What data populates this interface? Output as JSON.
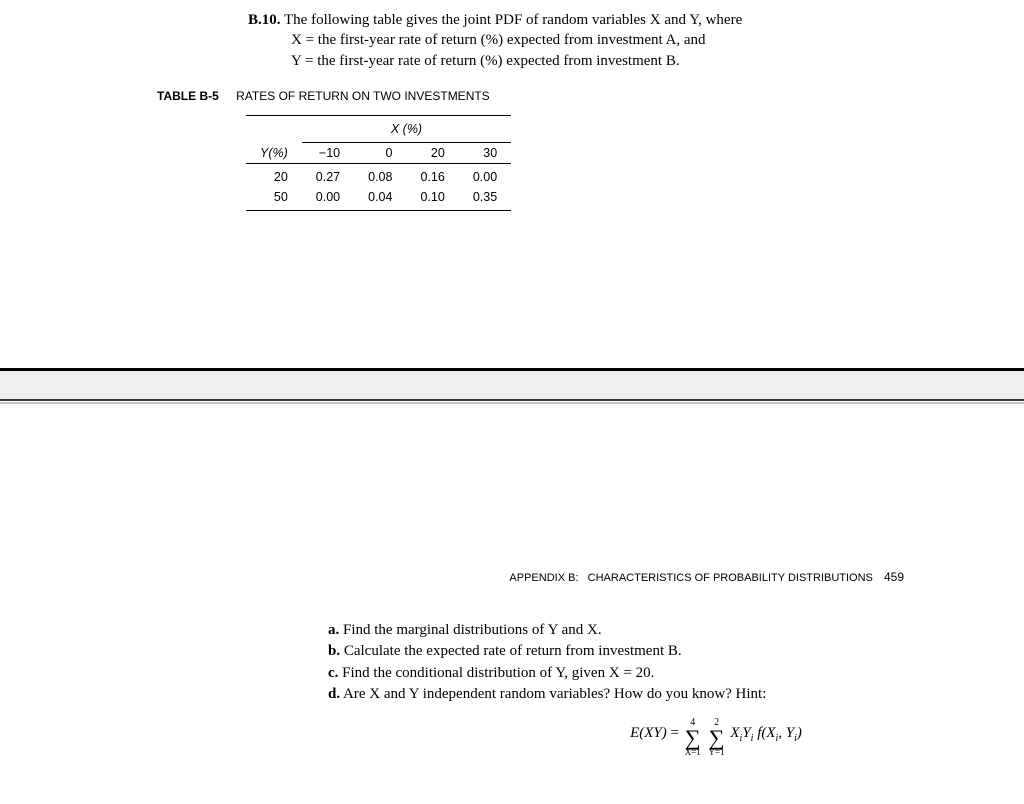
{
  "problem": {
    "number": "B.10.",
    "intro": "The following table gives the joint PDF of random variables X and Y, where",
    "def_x": "X = the first-year rate of return (%) expected from investment A, and",
    "def_y": "Y = the first-year rate of return (%) expected from investment B."
  },
  "table": {
    "label": "TABLE B-5",
    "title": "RATES OF RETURN ON TWO INVESTMENTS",
    "x_header": "X (%)",
    "y_header": "Y(%)",
    "x_values": [
      "−10",
      "0",
      "20",
      "30"
    ],
    "rows": [
      {
        "y": "20",
        "cells": [
          "0.27",
          "0.08",
          "0.16",
          "0.00"
        ]
      },
      {
        "y": "50",
        "cells": [
          "0.00",
          "0.04",
          "0.10",
          "0.35"
        ]
      }
    ]
  },
  "running_header": {
    "prefix": "APPENDIX B:",
    "title": "CHARACTERISTICS OF PROBABILITY DISTRIBUTIONS",
    "page": "459"
  },
  "questions": {
    "a": {
      "label": "a.",
      "text": "Find the marginal distributions of Y and X."
    },
    "b": {
      "label": "b.",
      "text": "Calculate the expected rate of return from investment B."
    },
    "c": {
      "label": "c.",
      "text": "Find the conditional distribution of Y, given X = 20."
    },
    "d": {
      "label": "d.",
      "text": "Are X and Y independent random variables? How do you know? Hint:"
    }
  },
  "formula": {
    "lhs": "E(XY)",
    "sum1_upper": "4",
    "sum1_lower": "X=1",
    "sum2_upper": "2",
    "sum2_lower": "Y=1"
  },
  "colors": {
    "text": "#000000",
    "background": "#ffffff",
    "divider_gap": "#efefef",
    "divider_dark": "#3a3a3a",
    "divider_light": "#c7c7c7"
  }
}
